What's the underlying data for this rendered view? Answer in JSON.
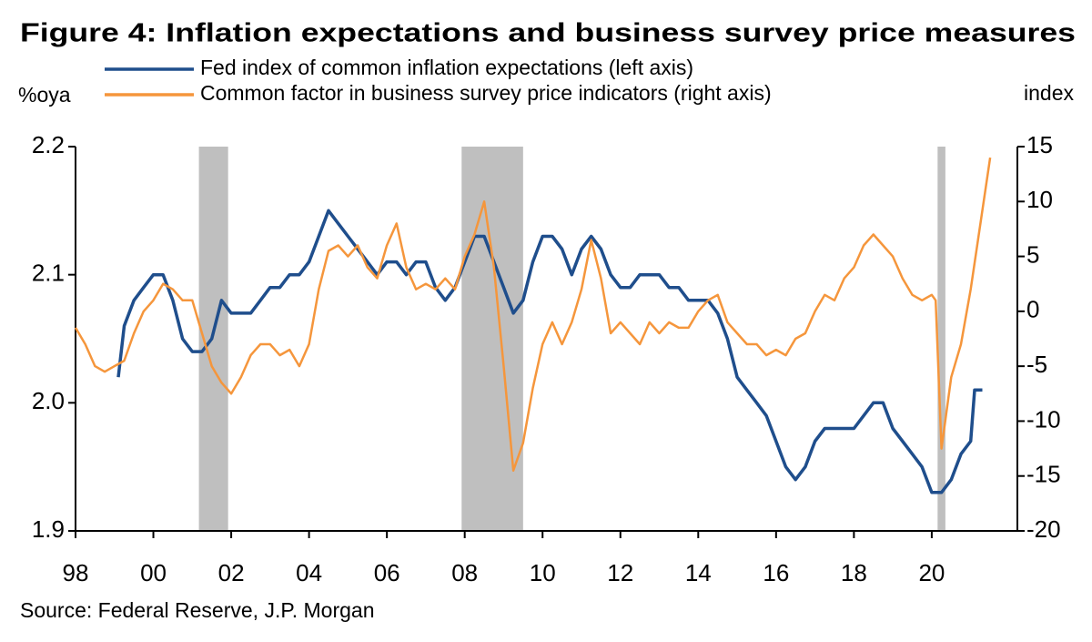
{
  "chart_data": {
    "type": "line",
    "title": "Figure 4: Inflation expectations and business survey price measures",
    "ylabel": "%oya",
    "y2label": "index",
    "source": "Source: Federal Reserve, J.P. Morgan",
    "xlim": [
      1998,
      2022.2
    ],
    "xticks": [
      {
        "value": 1998,
        "label": "98"
      },
      {
        "value": 2000,
        "label": "00"
      },
      {
        "value": 2002,
        "label": "02"
      },
      {
        "value": 2004,
        "label": "04"
      },
      {
        "value": 2006,
        "label": "06"
      },
      {
        "value": 2008,
        "label": "08"
      },
      {
        "value": 2010,
        "label": "10"
      },
      {
        "value": 2012,
        "label": "12"
      },
      {
        "value": 2014,
        "label": "14"
      },
      {
        "value": 2016,
        "label": "16"
      },
      {
        "value": 2018,
        "label": "18"
      },
      {
        "value": 2020,
        "label": "20"
      }
    ],
    "ylim": [
      1.9,
      2.2
    ],
    "yticks": [
      1.9,
      {
        "value": 2,
        "label": "2.0"
      },
      2.1,
      2.2
    ],
    "y2lim": [
      -20,
      15
    ],
    "y2ticks": [
      -20,
      -15,
      -10,
      -5,
      0,
      5,
      10,
      15
    ],
    "shaded_periods": [
      [
        2001.17,
        2001.92
      ],
      [
        2007.92,
        2009.5
      ],
      [
        2020.15,
        2020.35
      ]
    ],
    "shade_color": "#bfbfbf",
    "series": [
      {
        "name": "Fed index of common inflation expectations (left axis)",
        "color": "#1f4e8c",
        "axis": "y",
        "x": [
          1999.1,
          1999.25,
          1999.5,
          1999.75,
          2000,
          2000.25,
          2000.5,
          2000.75,
          2001,
          2001.25,
          2001.5,
          2001.75,
          2002,
          2002.25,
          2002.5,
          2002.75,
          2003,
          2003.25,
          2003.5,
          2003.75,
          2004,
          2004.25,
          2004.5,
          2004.75,
          2005,
          2005.25,
          2005.5,
          2005.75,
          2006,
          2006.25,
          2006.5,
          2006.75,
          2007,
          2007.25,
          2007.5,
          2007.75,
          2008,
          2008.25,
          2008.5,
          2008.75,
          2009,
          2009.25,
          2009.5,
          2009.75,
          2010,
          2010.25,
          2010.5,
          2010.75,
          2011,
          2011.25,
          2011.5,
          2011.75,
          2012,
          2012.25,
          2012.5,
          2012.75,
          2013,
          2013.25,
          2013.5,
          2013.75,
          2014,
          2014.25,
          2014.5,
          2014.75,
          2015,
          2015.25,
          2015.5,
          2015.75,
          2016,
          2016.25,
          2016.5,
          2016.75,
          2017,
          2017.25,
          2017.5,
          2017.75,
          2018,
          2018.25,
          2018.5,
          2018.75,
          2019,
          2019.25,
          2019.5,
          2019.75,
          2020,
          2020.25,
          2020.5,
          2020.75,
          2021,
          2021.1,
          2021.3
        ],
        "values": [
          2.02,
          2.06,
          2.08,
          2.09,
          2.1,
          2.1,
          2.08,
          2.05,
          2.04,
          2.04,
          2.05,
          2.08,
          2.07,
          2.07,
          2.07,
          2.08,
          2.09,
          2.09,
          2.1,
          2.1,
          2.11,
          2.13,
          2.15,
          2.14,
          2.13,
          2.12,
          2.11,
          2.1,
          2.11,
          2.11,
          2.1,
          2.11,
          2.11,
          2.09,
          2.08,
          2.09,
          2.11,
          2.13,
          2.13,
          2.11,
          2.09,
          2.07,
          2.08,
          2.11,
          2.13,
          2.13,
          2.12,
          2.1,
          2.12,
          2.13,
          2.12,
          2.1,
          2.09,
          2.09,
          2.1,
          2.1,
          2.1,
          2.09,
          2.09,
          2.08,
          2.08,
          2.08,
          2.07,
          2.05,
          2.02,
          2.01,
          2.0,
          1.99,
          1.97,
          1.95,
          1.94,
          1.95,
          1.97,
          1.98,
          1.98,
          1.98,
          1.98,
          1.99,
          2.0,
          2.0,
          1.98,
          1.97,
          1.96,
          1.95,
          1.93,
          1.93,
          1.94,
          1.96,
          1.97,
          2.01,
          2.01
        ]
      },
      {
        "name": "Common factor in business survey price indicators (right axis)",
        "color": "#f5963c",
        "axis": "y2",
        "x": [
          1998,
          1998.25,
          1998.5,
          1998.75,
          1999,
          1999.25,
          1999.5,
          1999.75,
          2000,
          2000.25,
          2000.5,
          2000.75,
          2001,
          2001.25,
          2001.5,
          2001.75,
          2002,
          2002.25,
          2002.5,
          2002.75,
          2003,
          2003.25,
          2003.5,
          2003.75,
          2004,
          2004.25,
          2004.5,
          2004.75,
          2005,
          2005.25,
          2005.5,
          2005.75,
          2006,
          2006.25,
          2006.5,
          2006.75,
          2007,
          2007.25,
          2007.5,
          2007.75,
          2008,
          2008.25,
          2008.5,
          2008.75,
          2009,
          2009.25,
          2009.5,
          2009.75,
          2010,
          2010.25,
          2010.5,
          2010.75,
          2011,
          2011.25,
          2011.5,
          2011.75,
          2012,
          2012.25,
          2012.5,
          2012.75,
          2013,
          2013.25,
          2013.5,
          2013.75,
          2014,
          2014.25,
          2014.5,
          2014.75,
          2015,
          2015.25,
          2015.5,
          2015.75,
          2016,
          2016.25,
          2016.5,
          2016.75,
          2017,
          2017.25,
          2017.5,
          2017.75,
          2018,
          2018.25,
          2018.5,
          2018.75,
          2019,
          2019.25,
          2019.5,
          2019.75,
          2020,
          2020.1,
          2020.25,
          2020.5,
          2020.75,
          2021,
          2021.25,
          2021.5
        ],
        "values": [
          -1.5,
          -3,
          -5,
          -5.5,
          -5,
          -4.5,
          -2,
          0,
          1,
          2.5,
          2,
          1,
          1,
          -2,
          -5,
          -6.5,
          -7.5,
          -6,
          -4,
          -3,
          -3,
          -4,
          -3.5,
          -5,
          -3,
          2,
          5.5,
          6,
          5,
          6,
          4,
          3,
          6,
          8,
          4,
          2,
          2.5,
          2,
          3,
          2,
          5,
          7,
          10,
          4,
          -5,
          -14.5,
          -12,
          -7,
          -3,
          -1,
          -3,
          -1,
          2,
          6.5,
          3,
          -2,
          -1,
          -2,
          -3,
          -1,
          -2,
          -1,
          -1.5,
          -1.5,
          0,
          1,
          1.5,
          -1,
          -2,
          -3,
          -3,
          -4,
          -3.5,
          -4,
          -2.5,
          -2,
          0,
          1.5,
          1,
          3,
          4,
          6,
          7,
          6,
          5,
          3,
          1.5,
          1,
          1.5,
          1,
          -12.5,
          -6,
          -3,
          2,
          8,
          14
        ]
      }
    ]
  }
}
